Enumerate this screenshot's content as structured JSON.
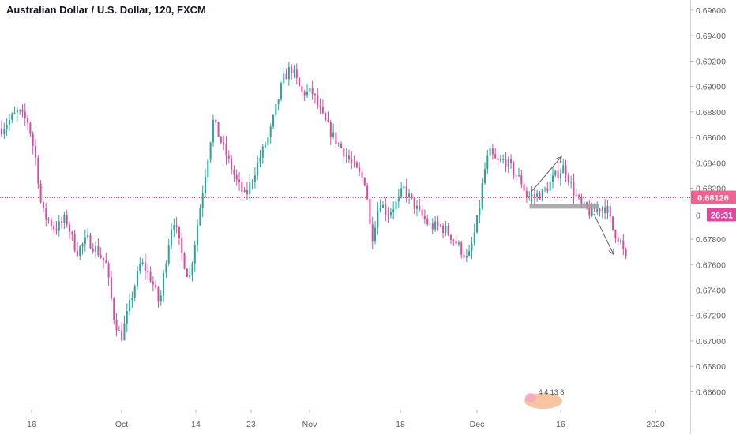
{
  "chart_title": "Australian Dollar / U.S. Dollar, 120, FXCM",
  "colors": {
    "up": "#26a69a",
    "down": "#e0479e",
    "price_line": "#e0479e",
    "axis_text": "#5d606b",
    "grid": "#f0f3fa",
    "support_zone": "#9e9e9e",
    "arrow": "#5d606b",
    "price_badge": "#f06292",
    "countdown_badge": "#e0479e"
  },
  "price_badge": {
    "value": "0.68126",
    "countdown": "26:31",
    "partial_tick": "0"
  },
  "watermark_text": "4 4 13 8",
  "chart_data": {
    "type": "candlestick",
    "title": "Australian Dollar / U.S. Dollar, 120, FXCM",
    "timeframe": "120",
    "ylim": [
      0.6646,
      0.6968
    ],
    "y_ticks": [
      "0.69600",
      "0.69400",
      "0.69200",
      "0.69000",
      "0.68800",
      "0.68600",
      "0.68400",
      "0.68200",
      "0.67800",
      "0.67600",
      "0.67400",
      "0.67200",
      "0.67000",
      "0.66800",
      "0.66600"
    ],
    "x_ticks": [
      "16",
      "Oct",
      "14",
      "23",
      "Nov",
      "18",
      "Dec",
      "16",
      "2020"
    ],
    "last_price": 0.68126,
    "price_path": [
      [
        0,
        0.6867
      ],
      [
        3,
        0.688
      ],
      [
        5,
        0.6872
      ],
      [
        6.5,
        0.684
      ],
      [
        7.5,
        0.6802
      ],
      [
        10,
        0.6788
      ],
      [
        12,
        0.6796
      ],
      [
        14,
        0.677
      ],
      [
        16,
        0.678
      ],
      [
        18,
        0.677
      ],
      [
        19.5,
        0.676
      ],
      [
        21,
        0.6718
      ],
      [
        22.3,
        0.6702
      ],
      [
        24,
        0.673
      ],
      [
        26,
        0.6762
      ],
      [
        28,
        0.6748
      ],
      [
        29.5,
        0.6728
      ],
      [
        30.5,
        0.676
      ],
      [
        32,
        0.6798
      ],
      [
        33.5,
        0.677
      ],
      [
        35,
        0.6748
      ],
      [
        36.5,
        0.679
      ],
      [
        39.5,
        0.6873
      ],
      [
        42,
        0.6845
      ],
      [
        44,
        0.6824
      ],
      [
        45.5,
        0.6813
      ],
      [
        48,
        0.6842
      ],
      [
        50,
        0.6862
      ],
      [
        52.5,
        0.6905
      ],
      [
        54,
        0.6915
      ],
      [
        56,
        0.6895
      ],
      [
        58,
        0.6895
      ],
      [
        60,
        0.6875
      ],
      [
        62,
        0.686
      ],
      [
        64,
        0.6848
      ],
      [
        66,
        0.6835
      ],
      [
        68,
        0.6824
      ],
      [
        69,
        0.6778
      ],
      [
        70.5,
        0.681
      ],
      [
        72,
        0.68
      ],
      [
        74,
        0.681
      ],
      [
        75,
        0.682
      ],
      [
        76.5,
        0.681
      ],
      [
        78,
        0.68
      ],
      [
        80,
        0.679
      ],
      [
        82,
        0.679
      ],
      [
        84,
        0.6782
      ],
      [
        86,
        0.677
      ],
      [
        87,
        0.6763
      ],
      [
        88,
        0.678
      ],
      [
        89,
        0.68
      ],
      [
        90,
        0.6832
      ],
      [
        91,
        0.6848
      ],
      [
        92.5,
        0.684
      ],
      [
        94,
        0.6842
      ],
      [
        95.5,
        0.6833
      ],
      [
        97,
        0.6825
      ],
      [
        98,
        0.6814
      ],
      [
        99.5,
        0.6814
      ],
      [
        101,
        0.6816
      ],
      [
        103,
        0.6828
      ],
      [
        105,
        0.6837
      ],
      [
        106.5,
        0.682
      ],
      [
        108,
        0.6807
      ],
      [
        110,
        0.68
      ],
      [
        112,
        0.6806
      ],
      [
        113,
        0.6804
      ],
      [
        114,
        0.6788
      ],
      [
        115.5,
        0.6778
      ],
      [
        116.5,
        0.6763
      ]
    ],
    "n_candles": 240,
    "support_zone": {
      "x0": 98.5,
      "x1": 111.5,
      "y0": 0.68053,
      "y1": 0.68077
    },
    "arrows": [
      {
        "from": [
          99,
          0.6818
        ],
        "to": [
          104.5,
          0.6845
        ]
      },
      {
        "from": [
          110.5,
          0.68
        ],
        "to": [
          114.2,
          0.6768
        ]
      }
    ]
  }
}
